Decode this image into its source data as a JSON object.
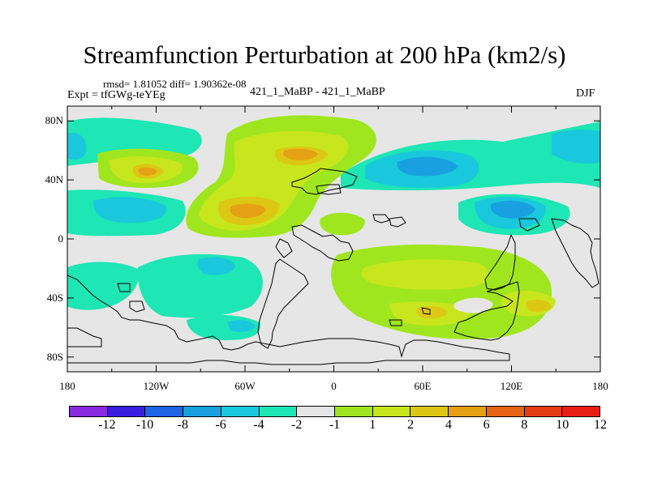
{
  "title": "Streamfunction Perturbation at 200 hPa (km2/s)",
  "stats_line": "rmsd= 1.81052 diff= 1.90362e-08",
  "experiment": "Expt = tfGWg-teYEg",
  "cases": "421_1_MaBP - 421_1_MaBP",
  "season": "DJF",
  "map": {
    "projection": "cylindrical-equidistant",
    "lon_range": [
      -180,
      180
    ],
    "lat_range": [
      -90,
      90
    ],
    "lat_ticks": [
      {
        "value": 80,
        "label": "80N"
      },
      {
        "value": 40,
        "label": "40N"
      },
      {
        "value": 0,
        "label": "0"
      },
      {
        "value": -40,
        "label": "40S"
      },
      {
        "value": -80,
        "label": "80S"
      }
    ],
    "lon_ticks": [
      {
        "value": -180,
        "label": "180"
      },
      {
        "value": -120,
        "label": "120W"
      },
      {
        "value": -60,
        "label": "60W"
      },
      {
        "value": 0,
        "label": "0"
      },
      {
        "value": 60,
        "label": "60E"
      },
      {
        "value": 120,
        "label": "120E"
      },
      {
        "value": 180,
        "label": "180"
      }
    ],
    "background_color": "#e6e6e6"
  },
  "colorbar": {
    "colors": [
      "#8a2be2",
      "#3a1ee0",
      "#1e64e6",
      "#19a0e0",
      "#19c8dc",
      "#1ee6b4",
      "#e6e6e6",
      "#a0e61e",
      "#c8e61e",
      "#dcc814",
      "#e6a014",
      "#e66414",
      "#e63c14",
      "#e61e14"
    ],
    "labels": [
      "-12",
      "-10",
      "-8",
      "-6",
      "-4",
      "-2",
      "-1",
      "1",
      "2",
      "4",
      "6",
      "8",
      "10",
      "12"
    ]
  }
}
